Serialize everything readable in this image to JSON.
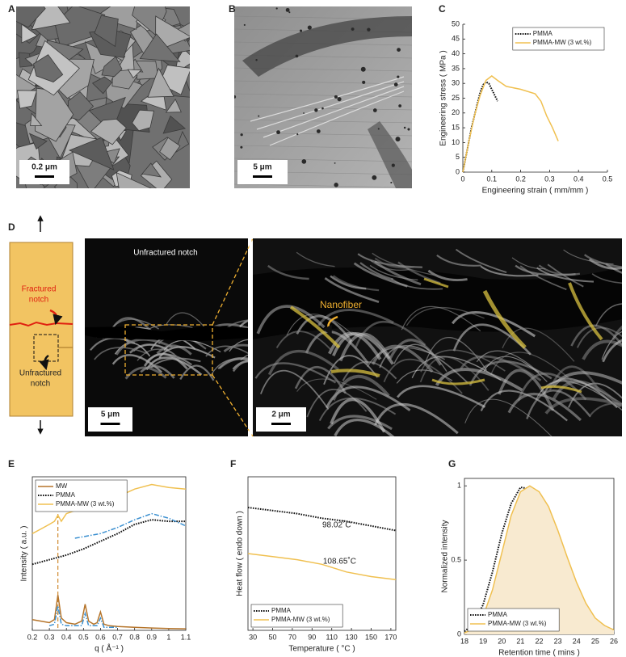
{
  "figure": {
    "panel_labels": [
      "A",
      "B",
      "C",
      "D",
      "E",
      "F",
      "G"
    ],
    "scale_bars": [
      "0.2 μm",
      "5 μm",
      "5 μm",
      "2 μm"
    ],
    "schematic_fractured": [
      "Fractured",
      "notch"
    ],
    "schematic_unfractured": [
      "Unfractured",
      "notch"
    ],
    "image_label": "Unfractured notch",
    "nanofiber_label": "Nanofiber"
  },
  "chart_data": [
    {
      "type": "line",
      "xlabel": "Engineering strain ( mm/mm )",
      "ylabel": "Engineering stress ( MPa )",
      "xlim": [
        0,
        0.5
      ],
      "xticks": [
        0,
        0.1,
        0.2,
        0.3,
        0.4,
        0.5
      ],
      "ylim": [
        0,
        50
      ],
      "yticks": [
        0,
        5,
        10,
        15,
        20,
        25,
        30,
        35,
        40,
        45,
        50
      ],
      "legend": "upper right",
      "frame": false,
      "series": [
        {
          "name": "PMMA",
          "color": "#111111",
          "linestyle": "dotted",
          "x": [
            0,
            0.01,
            0.02,
            0.03,
            0.04,
            0.05,
            0.06,
            0.07,
            0.08,
            0.09,
            0.1,
            0.11,
            0.12
          ],
          "values": [
            0,
            5,
            10,
            15,
            19,
            23,
            27,
            29.5,
            30.5,
            30,
            28,
            26,
            24
          ]
        },
        {
          "name": "PMMA-MW (3 wt.%)",
          "color": "#f0c050",
          "linestyle": "solid",
          "x": [
            0,
            0.02,
            0.04,
            0.06,
            0.08,
            0.1,
            0.12,
            0.15,
            0.2,
            0.25,
            0.27,
            0.29,
            0.31,
            0.33
          ],
          "values": [
            0,
            10,
            19,
            26,
            31,
            32.5,
            31,
            29,
            28,
            26.5,
            24,
            19,
            15,
            10.5
          ]
        }
      ]
    },
    {
      "type": "line",
      "xlabel": "q ( Å⁻¹ )",
      "ylabel": "Intensity ( a.u. )",
      "xlim": [
        0.2,
        1.1
      ],
      "xticks": [
        0.2,
        0.3,
        0.4,
        0.5,
        0.6,
        0.7,
        0.8,
        0.9,
        1,
        1.1
      ],
      "ylim": [
        0,
        10
      ],
      "legend": "upper left",
      "frame": true,
      "marker_line_x": 0.35,
      "marker_line_color": "#d08a30",
      "series": [
        {
          "name": "MW",
          "color": "#b5742a",
          "linestyle": "solid",
          "x": [
            0.2,
            0.25,
            0.3,
            0.33,
            0.35,
            0.37,
            0.4,
            0.45,
            0.49,
            0.51,
            0.53,
            0.56,
            0.58,
            0.6,
            0.62,
            0.65,
            0.7,
            0.8,
            0.9,
            1.0,
            1.1
          ],
          "values": [
            0.7,
            0.6,
            0.5,
            0.7,
            2.3,
            0.8,
            0.5,
            0.4,
            0.6,
            1.7,
            0.6,
            0.4,
            0.5,
            1.2,
            0.4,
            0.3,
            0.25,
            0.2,
            0.15,
            0.12,
            0.1
          ]
        },
        {
          "name": "PMMA",
          "color": "#111111",
          "linestyle": "dotted",
          "x": [
            0.2,
            0.3,
            0.4,
            0.5,
            0.6,
            0.7,
            0.8,
            0.9,
            1.0,
            1.1
          ],
          "values": [
            4.3,
            4.6,
            4.9,
            5.3,
            5.8,
            6.3,
            6.9,
            7.2,
            7.1,
            7.1
          ]
        },
        {
          "name": "PMMA-MW (3 wt.%)",
          "color": "#f0c050",
          "linestyle": "solid",
          "x": [
            0.2,
            0.25,
            0.3,
            0.33,
            0.35,
            0.37,
            0.4,
            0.5,
            0.6,
            0.7,
            0.8,
            0.9,
            1.0,
            1.1
          ],
          "values": [
            6.3,
            6.6,
            6.9,
            7.1,
            7.5,
            7.1,
            7.6,
            8.0,
            8.3,
            8.7,
            9.2,
            9.5,
            9.3,
            9.2
          ]
        },
        {
          "color": "#3a8fd0",
          "linestyle": "dashdot",
          "x": [
            0.3,
            0.33,
            0.35,
            0.37,
            0.4,
            0.49,
            0.51,
            0.53,
            0.58,
            0.6,
            0.62,
            0.7
          ],
          "values": [
            0.3,
            0.4,
            1.6,
            0.4,
            0.3,
            0.3,
            1.1,
            0.3,
            0.3,
            0.8,
            0.2,
            0.2
          ]
        },
        {
          "color": "#3a8fd0",
          "linestyle": "dashdot",
          "x": [
            0.45,
            0.6,
            0.7,
            0.8,
            0.9,
            1.0,
            1.1
          ],
          "values": [
            6.0,
            6.3,
            6.7,
            7.2,
            7.6,
            7.3,
            6.8
          ]
        }
      ]
    },
    {
      "type": "line",
      "xlabel": "Temperature ( °C )",
      "ylabel": "Heat flow ( endo down )",
      "xlim": [
        25,
        175
      ],
      "xticks": [
        30,
        50,
        70,
        90,
        110,
        130,
        150,
        170
      ],
      "ylim": [
        0,
        10
      ],
      "legend": "lower left",
      "frame": true,
      "annotations": [
        "98.02˚C",
        "108.65˚C"
      ],
      "x": [
        25,
        50,
        75,
        100,
        125,
        150,
        175
      ],
      "series": [
        {
          "name": "PMMA",
          "color": "#111111",
          "linestyle": "dotted",
          "values": [
            8.0,
            7.8,
            7.6,
            7.3,
            7.1,
            6.8,
            6.5
          ]
        },
        {
          "name": "PMMA-MW (3 wt.%)",
          "color": "#f0c050",
          "linestyle": "solid",
          "values": [
            5.0,
            4.8,
            4.6,
            4.3,
            3.8,
            3.5,
            3.3
          ]
        }
      ]
    },
    {
      "type": "line",
      "xlabel": "Retention time ( mins )",
      "ylabel": "Normalized intensity",
      "xlim": [
        18,
        26
      ],
      "xticks": [
        18,
        19,
        20,
        21,
        22,
        23,
        24,
        25,
        26
      ],
      "ylim": [
        0,
        1.05
      ],
      "yticks": [
        0,
        0.5,
        1
      ],
      "legend": "lower left",
      "frame": true,
      "x": [
        18,
        18.5,
        19,
        19.5,
        20,
        20.5,
        21,
        21.5,
        22,
        22.5,
        23,
        23.5,
        24,
        24.5,
        25,
        25.5,
        26
      ],
      "series": [
        {
          "name": "PMMA",
          "color": "#111111",
          "linestyle": "dotted",
          "values": [
            0.02,
            0.07,
            0.2,
            0.42,
            0.68,
            0.88,
            0.99,
            0.98,
            0.9,
            0.77,
            0.6,
            0.43,
            0.28,
            0.17,
            0.09,
            0.05,
            0.03
          ]
        },
        {
          "name": "PMMA-MW (3 wt.%)",
          "color": "#f0c050",
          "linestyle": "solid",
          "fill": "#f8ead0",
          "values": [
            0.01,
            0.04,
            0.12,
            0.3,
            0.55,
            0.8,
            0.96,
            1.0,
            0.96,
            0.86,
            0.7,
            0.52,
            0.35,
            0.21,
            0.11,
            0.06,
            0.03
          ]
        }
      ]
    }
  ]
}
